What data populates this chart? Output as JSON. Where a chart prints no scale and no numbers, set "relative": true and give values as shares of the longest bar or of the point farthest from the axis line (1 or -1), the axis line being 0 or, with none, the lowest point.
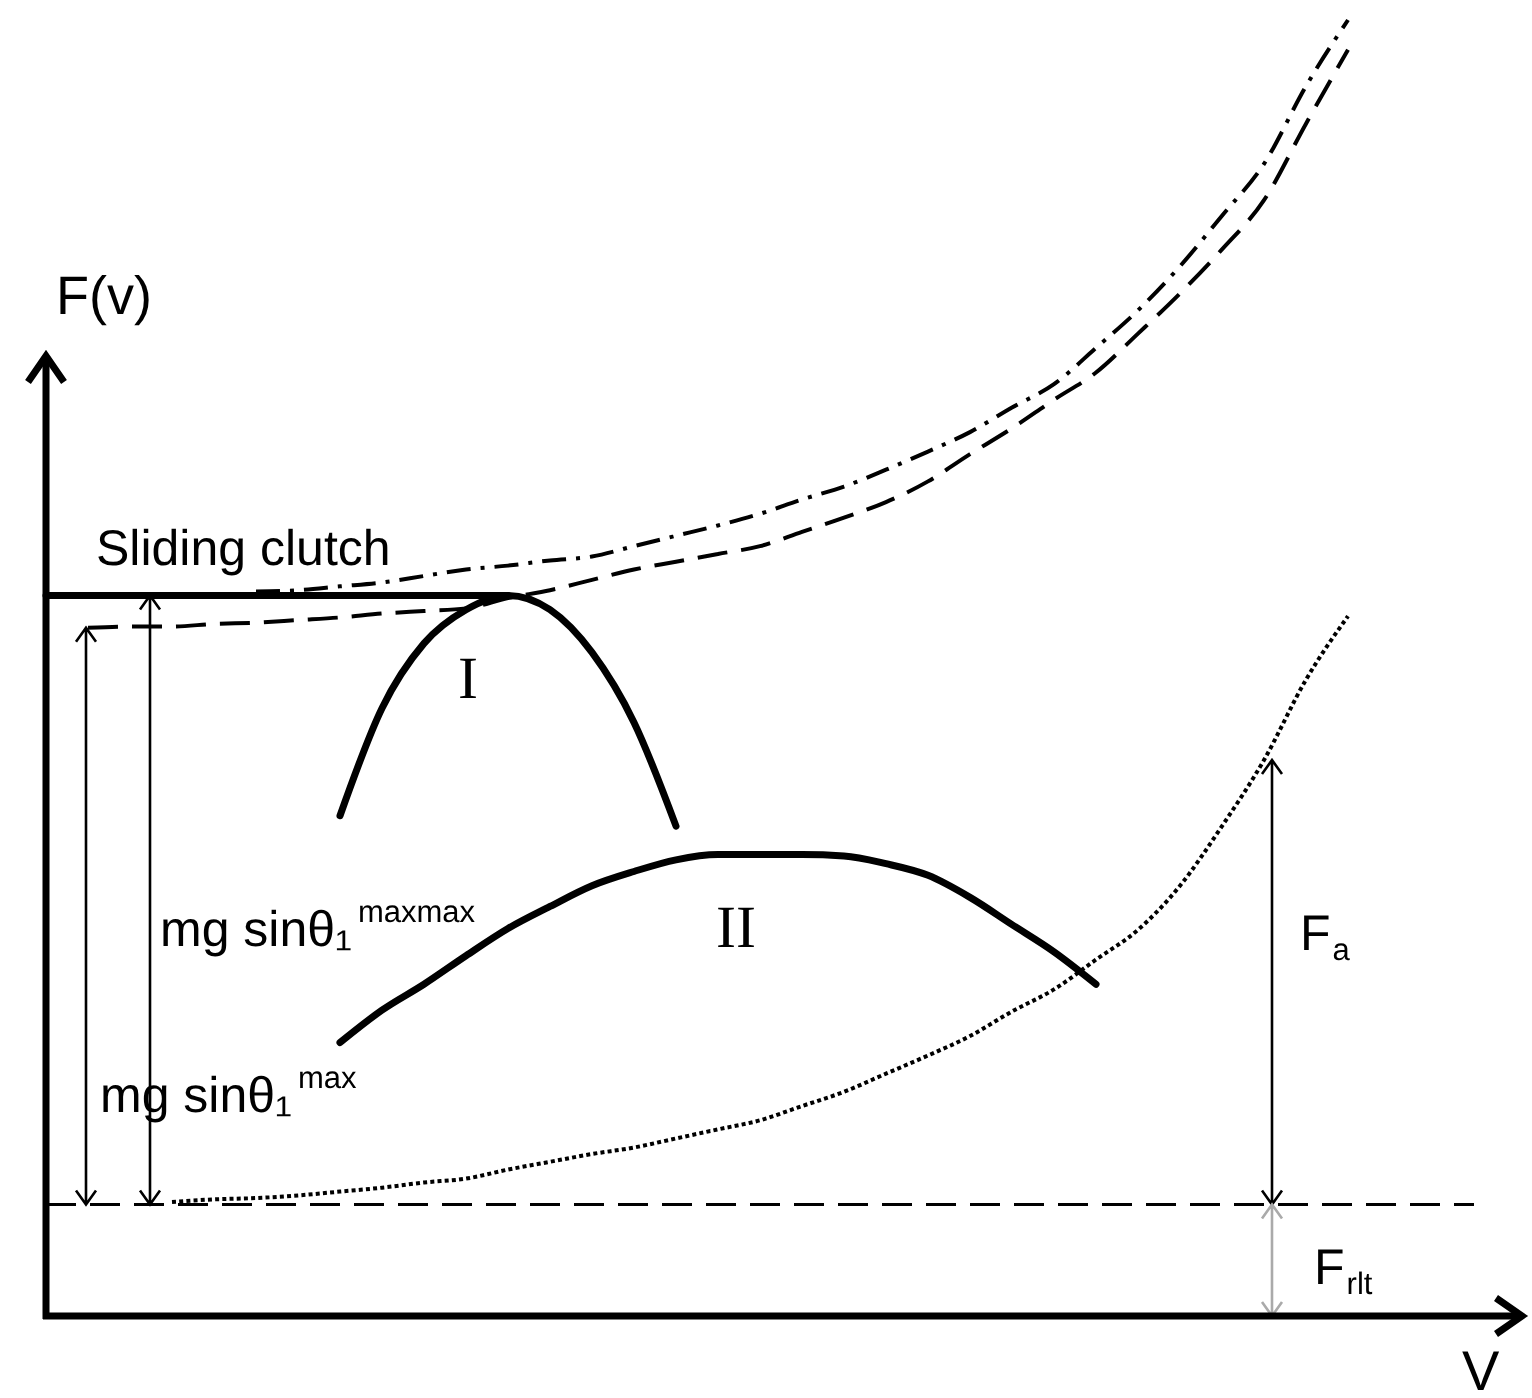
{
  "chart_data": {
    "type": "line",
    "xlabel": "V",
    "ylabel": "F(v)",
    "relative": true,
    "categories": [
      null,
      null,
      null,
      null,
      null,
      null,
      null,
      null,
      null,
      null,
      null,
      null,
      null,
      null,
      null,
      null,
      null,
      null,
      null,
      null,
      null,
      null,
      null,
      null,
      null,
      null,
      null,
      null,
      null,
      null,
      null,
      null,
      null,
      null,
      null
    ],
    "series": [
      {
        "color": "#000000",
        "line_style": "dashdot",
        "values": [
          null,
          null,
          null,
          null,
          null,
          0.559,
          0.56,
          0.563,
          0.566,
          0.571,
          0.576,
          0.579,
          0.583,
          0.586,
          0.594,
          0.602,
          0.61,
          0.619,
          0.63,
          0.64,
          0.653,
          0.667,
          0.682,
          0.701,
          0.719,
          0.747,
          0.776,
          0.81,
          0.849,
          0.889,
          0.949,
          1,
          null,
          null,
          null
        ]
      },
      {
        "color": "#000000",
        "line_style": "dashed",
        "values": [
          null,
          0.531,
          0.532,
          0.532,
          0.534,
          0.535,
          0.537,
          0.539,
          0.542,
          0.544,
          0.546,
          0.554,
          0.56,
          0.568,
          0.576,
          0.582,
          0.588,
          0.594,
          0.605,
          0.616,
          0.628,
          0.644,
          0.665,
          0.685,
          0.707,
          0.728,
          0.758,
          0.789,
          0.823,
          0.861,
          0.92,
          0.977,
          null,
          null,
          null
        ]
      },
      {
        "name": "Sliding clutch",
        "color": "#000000",
        "line_style": "solid",
        "values": [
          0.556,
          0.556,
          0.556,
          0.556,
          0.556,
          0.556,
          0.556,
          0.556,
          0.556,
          0.556,
          0.556,
          0.556,
          null,
          null,
          null,
          null,
          null,
          null,
          null,
          null,
          null,
          null,
          null,
          null,
          null,
          null,
          null,
          null,
          null,
          null,
          null,
          null,
          null,
          null,
          null
        ]
      },
      {
        "name": "I",
        "color": "#000000",
        "line_style": "solid",
        "values": [
          null,
          null,
          null,
          null,
          null,
          null,
          null,
          0.386,
          0.469,
          0.519,
          0.545,
          0.556,
          0.545,
          0.512,
          0.458,
          0.378,
          null,
          null,
          null,
          null,
          null,
          null,
          null,
          null,
          null,
          null,
          null,
          null,
          null,
          null,
          null,
          null,
          null,
          null,
          null
        ]
      },
      {
        "name": "II",
        "color": "#000000",
        "line_style": "solid",
        "values": [
          null,
          null,
          null,
          null,
          null,
          null,
          null,
          0.211,
          0.236,
          0.256,
          0.278,
          0.299,
          0.316,
          0.332,
          0.343,
          0.352,
          0.356,
          0.356,
          0.356,
          0.355,
          0.349,
          0.34,
          0.323,
          0.302,
          0.281,
          0.256,
          null,
          null,
          null,
          null,
          null,
          null,
          null,
          null,
          null
        ]
      },
      {
        "color": "#000000",
        "line_style": "dotted",
        "values": [
          null,
          null,
          null,
          0.088,
          0.09,
          0.091,
          0.093,
          0.096,
          0.099,
          0.103,
          0.106,
          0.113,
          0.119,
          0.125,
          0.13,
          0.137,
          0.144,
          0.151,
          0.162,
          0.173,
          0.187,
          0.201,
          0.216,
          0.235,
          0.252,
          0.275,
          0.298,
          0.332,
          0.378,
          0.429,
          0.491,
          0.54,
          null,
          null,
          null
        ]
      }
    ],
    "ref_lines": [
      {
        "axis": "y",
        "value": 0.086,
        "color": "#000000",
        "line_style": "dashed"
      }
    ],
    "annotations": [
      "mg sinθ₁$^{maxmax}$",
      "mg sinθ₁$^{max}$",
      "F$_{a}$",
      "F$_{rlt}$"
    ]
  }
}
